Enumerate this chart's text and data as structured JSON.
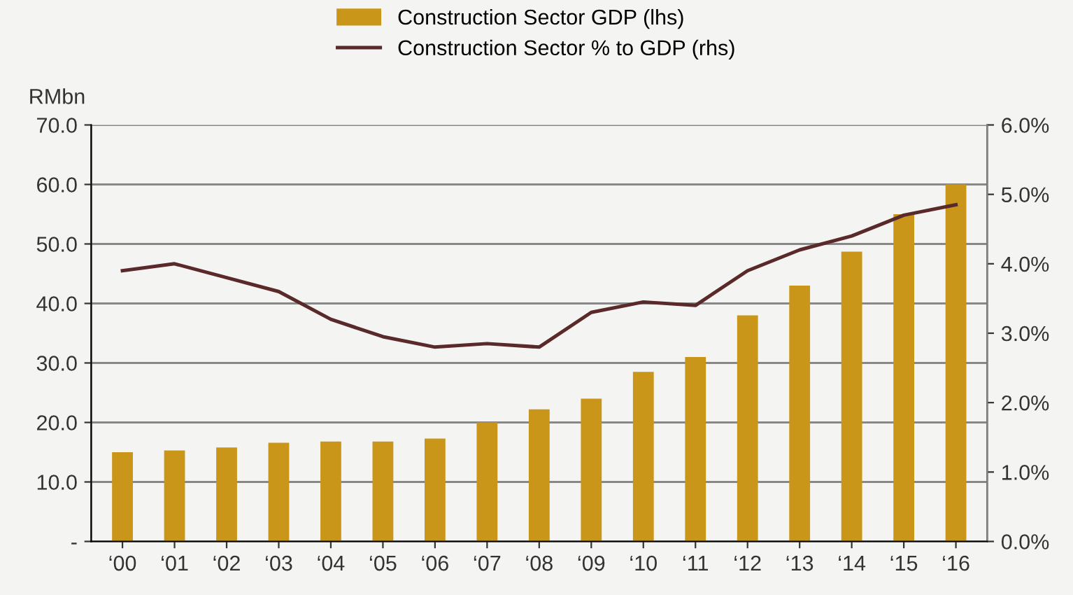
{
  "chart_data": {
    "type": "bar",
    "ylabel": "RMbn",
    "categories": [
      "‘00",
      "‘01",
      "‘02",
      "‘03",
      "‘04",
      "‘05",
      "‘06",
      "‘07",
      "‘08",
      "‘09",
      "‘10",
      "‘11",
      "‘12",
      "‘13",
      "‘14",
      "‘15",
      "‘16"
    ],
    "series": [
      {
        "name": "Construction Sector GDP (lhs)",
        "color": "#c9961a",
        "values": [
          15.0,
          15.3,
          15.8,
          16.6,
          16.8,
          16.8,
          17.3,
          20.0,
          22.2,
          24.0,
          28.5,
          31.0,
          38.0,
          43.0,
          48.7,
          55.0,
          60.0
        ]
      },
      {
        "name": "Construction Sector % to GDP (rhs)",
        "type": "line",
        "axis": "y2",
        "color": "#5a2a2a",
        "values": [
          3.9,
          4.0,
          3.8,
          3.6,
          3.2,
          2.95,
          2.8,
          2.85,
          2.8,
          3.3,
          3.45,
          3.4,
          3.9,
          4.2,
          4.4,
          4.7,
          4.85
        ]
      }
    ],
    "ylim": [
      0,
      70
    ],
    "yticks": [
      {
        "value": 0,
        "label": "-"
      },
      {
        "value": 10,
        "label": "10.0"
      },
      {
        "value": 20,
        "label": "20.0"
      },
      {
        "value": 30,
        "label": "30.0"
      },
      {
        "value": 40,
        "label": "40.0"
      },
      {
        "value": 50,
        "label": "50.0"
      },
      {
        "value": 60,
        "label": "60.0"
      },
      {
        "value": 70,
        "label": "70.0"
      }
    ],
    "y2lim": [
      0,
      6
    ],
    "y2ticks": [
      {
        "value": 0,
        "label": "0.0%"
      },
      {
        "value": 1,
        "label": "1.0%"
      },
      {
        "value": 2,
        "label": "2.0%"
      },
      {
        "value": 3,
        "label": "3.0%"
      },
      {
        "value": 4,
        "label": "4.0%"
      },
      {
        "value": 5,
        "label": "5.0%"
      },
      {
        "value": 6,
        "label": "6.0%"
      }
    ],
    "grid": "y",
    "legend": "top"
  }
}
